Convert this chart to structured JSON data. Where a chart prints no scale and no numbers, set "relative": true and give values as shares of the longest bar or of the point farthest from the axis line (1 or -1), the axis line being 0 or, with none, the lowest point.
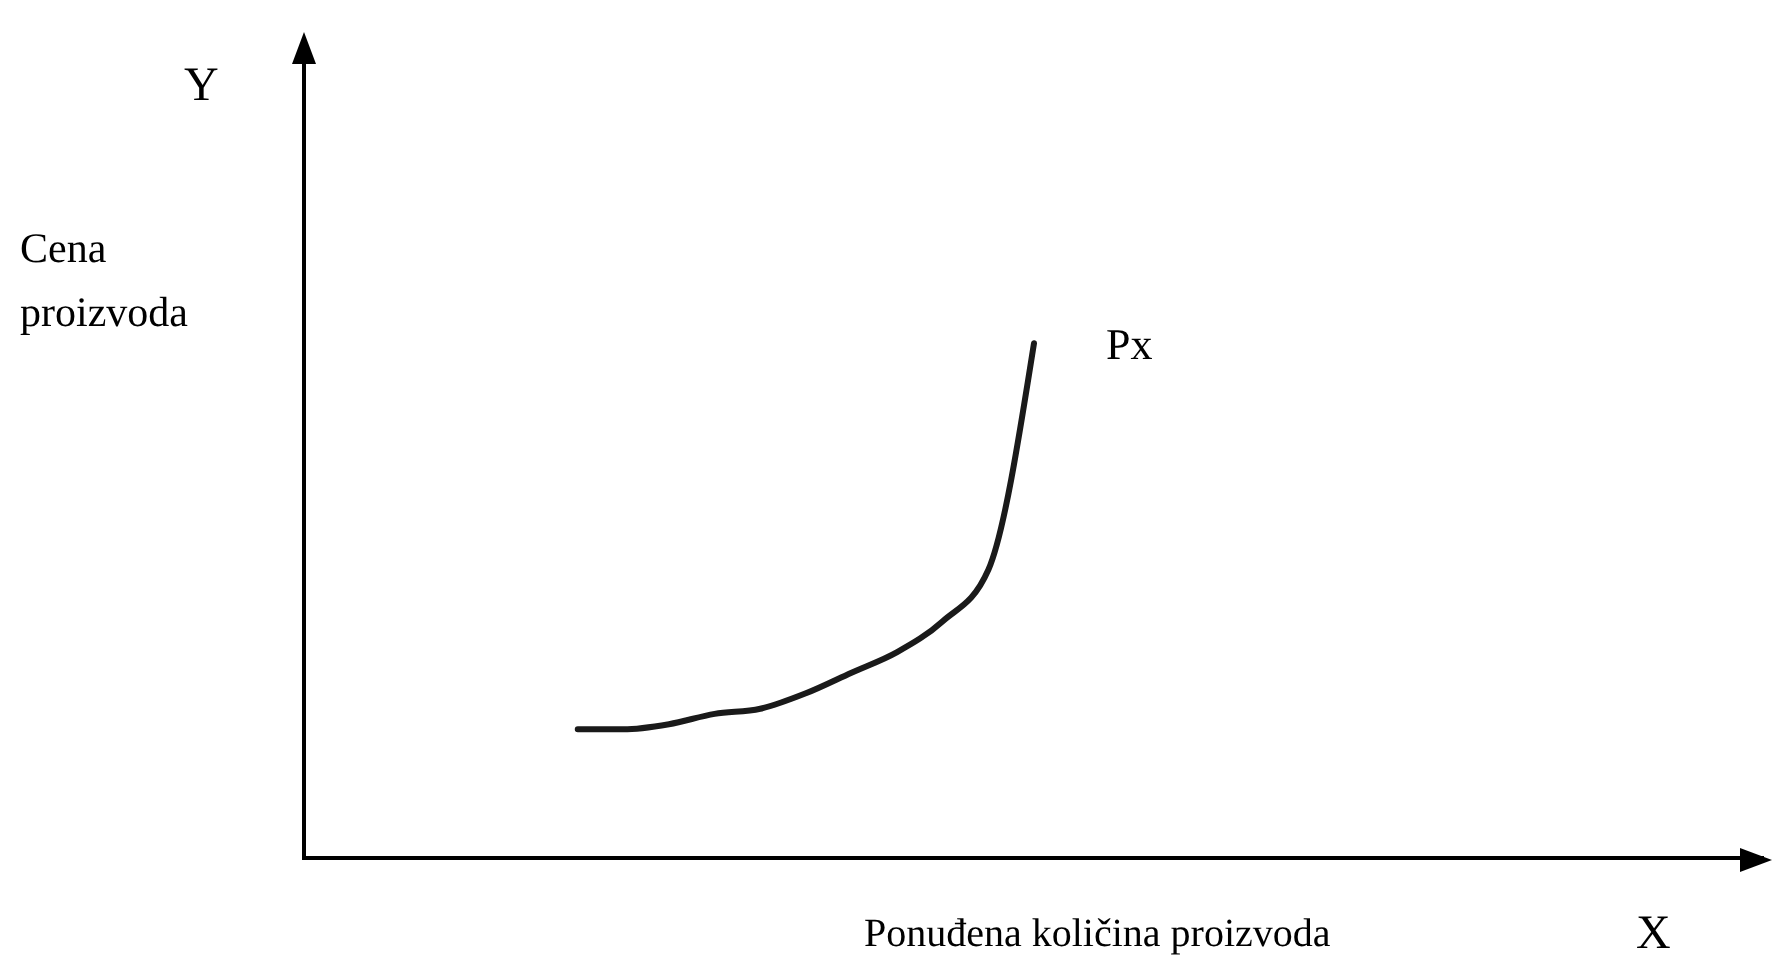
{
  "chart_data": {
    "type": "line",
    "relative": true,
    "xlabel": "Ponuđena količina proizvoda",
    "ylabel": "Cena proizvoda",
    "annotations": [
      "Y",
      "X"
    ],
    "marker": "none",
    "line_style": "solid",
    "categories": [
      null,
      null,
      null,
      null,
      null,
      null,
      null,
      null,
      null,
      null,
      null,
      null,
      null,
      null,
      null,
      null,
      null,
      null,
      null,
      null,
      null,
      null,
      null,
      null,
      null,
      null,
      null,
      null,
      null,
      null,
      null,
      null,
      null
    ],
    "series": [
      {
        "name": "Px",
        "color": "#1a1a1a",
        "values": [
          null,
          null,
          null,
          null,
          null,
          null,
          0.25,
          0.25,
          0.26,
          0.28,
          0.29,
          0.32,
          0.36,
          0.4,
          0.46,
          0.56,
          1,
          null,
          null,
          null,
          null,
          null,
          null,
          null,
          null,
          null,
          null,
          null,
          null,
          null,
          null,
          null,
          null
        ]
      }
    ]
  }
}
